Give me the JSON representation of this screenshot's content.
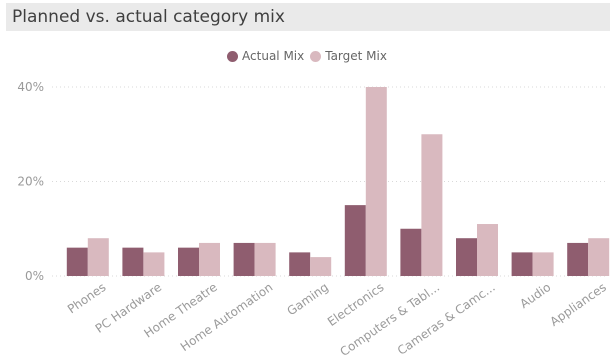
{
  "title": "Planned vs. actual category mix",
  "colors": {
    "actual": "#8f5d6f",
    "target": "#d9b9bf",
    "title_bg": "#eaeaea",
    "grid": "#d9d9d9",
    "label": "#9a9a9a"
  },
  "chart_data": {
    "type": "bar",
    "title": "Planned vs. actual category mix",
    "xlabel": "",
    "ylabel": "",
    "ylim": [
      0,
      40
    ],
    "yticks": [
      0,
      20,
      40
    ],
    "ytick_labels": [
      "0%",
      "20%",
      "40%"
    ],
    "grid": true,
    "legend_position": "top-center",
    "categories": [
      "Phones",
      "PC Hardware",
      "Home Theatre",
      "Home Automation",
      "Gaming",
      "Electronics",
      "Computers & Tabl...",
      "Cameras & Camc...",
      "Audio",
      "Appliances"
    ],
    "series": [
      {
        "name": "Actual Mix",
        "color": "#8f5d6f",
        "values": [
          6,
          6,
          6,
          7,
          5,
          15,
          10,
          8,
          5,
          7
        ]
      },
      {
        "name": "Target Mix",
        "color": "#d9b9bf",
        "values": [
          8,
          5,
          7,
          7,
          4,
          40,
          30,
          11,
          5,
          8
        ]
      }
    ]
  }
}
